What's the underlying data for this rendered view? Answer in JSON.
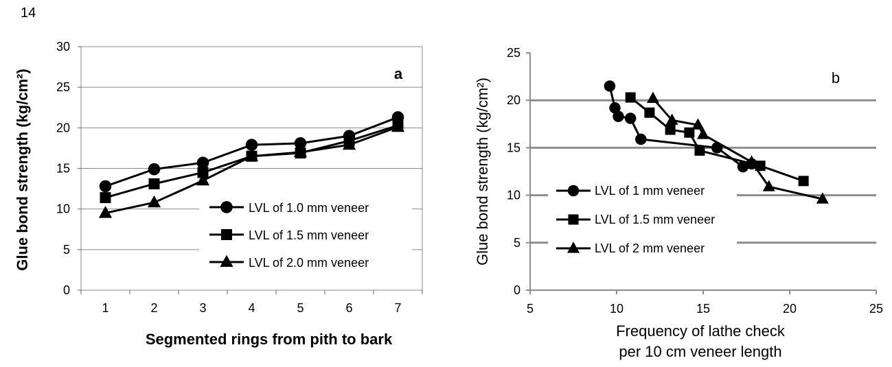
{
  "page_number": "14",
  "chart_data": [
    {
      "type": "line",
      "panel_label": "a",
      "xlabel": "Segmented rings from pith to bark",
      "ylabel": "Glue bond strength (kg/cm²)",
      "categories": [
        "1",
        "2",
        "3",
        "4",
        "5",
        "6",
        "7"
      ],
      "ylim": [
        0,
        30
      ],
      "yticks": [
        "0",
        "5",
        "10",
        "15",
        "20",
        "25",
        "30"
      ],
      "grid": true,
      "legend_placement": "lower-right",
      "series": [
        {
          "name": "LVL of 1.0 mm veneer",
          "marker": "circle",
          "values": [
            12.8,
            14.9,
            15.7,
            17.9,
            18.1,
            19.0,
            21.3
          ]
        },
        {
          "name": "LVL of 1.5 mm veneer",
          "marker": "square",
          "values": [
            11.4,
            13.1,
            14.5,
            16.5,
            16.9,
            18.4,
            20.3
          ]
        },
        {
          "name": "LVL of 2.0 mm veneer",
          "marker": "triangle",
          "values": [
            9.5,
            10.8,
            13.5,
            16.5,
            17.0,
            17.9,
            20.1
          ]
        }
      ]
    },
    {
      "type": "line",
      "panel_label": "b",
      "xlabel": [
        "Frequency of lathe check",
        "per 10 cm veneer length"
      ],
      "ylabel": "Glue bond strength (kg/cm²)",
      "xlim": [
        5,
        25
      ],
      "ylim": [
        0,
        25
      ],
      "xticks": [
        "5",
        "10",
        "15",
        "20",
        "25"
      ],
      "yticks": [
        "0",
        "5",
        "10",
        "15",
        "20",
        "25"
      ],
      "grid": true,
      "legend_placement": "left",
      "series": [
        {
          "name": "LVL of 1 mm veneer",
          "marker": "circle",
          "points": [
            [
              9.6,
              21.5
            ],
            [
              9.9,
              19.2
            ],
            [
              10.1,
              18.3
            ],
            [
              10.8,
              18.1
            ],
            [
              11.4,
              15.9
            ],
            [
              15.8,
              15.0
            ],
            [
              17.3,
              13.0
            ],
            [
              17.8,
              13.3
            ]
          ]
        },
        {
          "name": "LVL of 1.5 mm veneer",
          "marker": "square",
          "points": [
            [
              10.8,
              20.3
            ],
            [
              11.9,
              18.7
            ],
            [
              13.1,
              16.9
            ],
            [
              14.2,
              16.6
            ],
            [
              14.8,
              14.7
            ],
            [
              18.3,
              13.1
            ],
            [
              20.8,
              11.5
            ]
          ]
        },
        {
          "name": "LVL of 2 mm veneer",
          "marker": "triangle",
          "points": [
            [
              12.1,
              20.2
            ],
            [
              13.2,
              17.9
            ],
            [
              14.7,
              17.4
            ],
            [
              15.0,
              16.4
            ],
            [
              17.8,
              13.5
            ],
            [
              18.8,
              10.9
            ],
            [
              21.9,
              9.6
            ]
          ]
        }
      ]
    }
  ]
}
